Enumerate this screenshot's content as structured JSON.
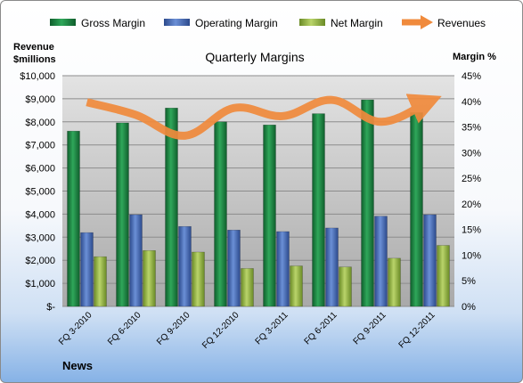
{
  "chart_data": {
    "type": "bar",
    "title": "Quarterly Margins",
    "left_axis_title": [
      "Revenue",
      "$millions"
    ],
    "right_axis_title": "Margin %",
    "footer": "News",
    "categories": [
      "FQ 3-2010",
      "FQ 6-2010",
      "FQ 9-2010",
      "FQ 12-2010",
      "FQ 3-2011",
      "FQ 6-2011",
      "FQ 9-2011",
      "FQ 12-2011"
    ],
    "left_axis": {
      "range": [
        0,
        10000
      ],
      "ticks": [
        "$-",
        "$1,000",
        "$2,000",
        "$3,000",
        "$4,000",
        "$5,000",
        "$6,000",
        "$7,000",
        "$8,000",
        "$9,000",
        "$10,000"
      ]
    },
    "right_axis": {
      "range": [
        0,
        45
      ],
      "ticks": [
        "0%",
        "5%",
        "10%",
        "15%",
        "20%",
        "25%",
        "30%",
        "35%",
        "40%",
        "45%"
      ]
    },
    "series": [
      {
        "name": "Gross Margin",
        "axis": "right",
        "kind": "bar",
        "color": "#1e8a45",
        "values": [
          34.2,
          35.8,
          38.7,
          36.0,
          35.4,
          37.6,
          40.3,
          37.8
        ]
      },
      {
        "name": "Operating Margin",
        "axis": "right",
        "kind": "bar",
        "color": "#4a6fbe",
        "values": [
          14.4,
          17.9,
          15.6,
          14.9,
          14.6,
          15.3,
          17.6,
          17.9
        ]
      },
      {
        "name": "Net Margin",
        "axis": "right",
        "kind": "bar",
        "color": "#97b84a",
        "values": [
          9.7,
          10.9,
          10.6,
          7.4,
          7.9,
          7.7,
          9.4,
          11.9
        ]
      },
      {
        "name": "Revenues",
        "axis": "left",
        "kind": "line",
        "color": "#f08a3c",
        "values": [
          8850,
          8300,
          7400,
          8600,
          8250,
          8950,
          8000,
          8900
        ]
      }
    ],
    "grid": true,
    "legend": "top"
  }
}
